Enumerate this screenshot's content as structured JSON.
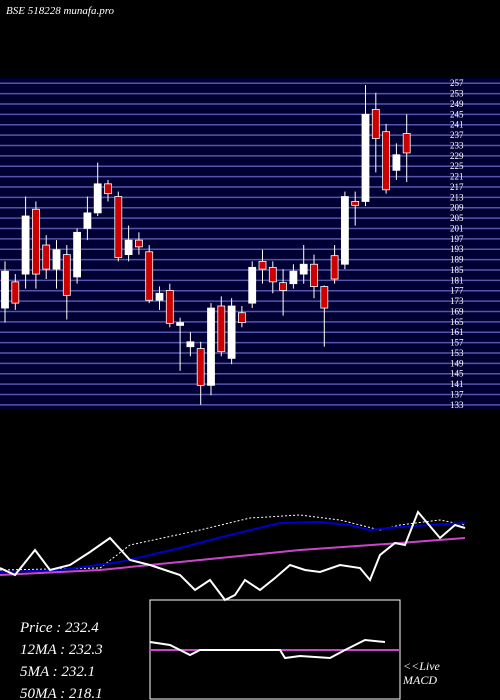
{
  "chart_data": [
    {
      "type": "candlestick",
      "title": "BSE 518228  munafa.pro",
      "ylim": [
        131,
        259
      ],
      "yticks": [
        257,
        253,
        249,
        245,
        241,
        237,
        233,
        229,
        225,
        221,
        217,
        213,
        209,
        205,
        201,
        197,
        193,
        189,
        185,
        181,
        177,
        173,
        169,
        165,
        161,
        157,
        153,
        149,
        145,
        141,
        137,
        133
      ],
      "up_color": "#ffffff",
      "down_color": "#cc0000",
      "grid": true,
      "open": [
        170.3,
        180.4,
        183.4,
        208.4,
        194.6,
        185.3,
        190.9,
        182.3,
        201.0,
        207.0,
        218.2,
        213.3,
        190.9,
        196.5,
        192.0,
        173.3,
        177.1,
        163.6,
        155.4,
        154.7,
        140.5,
        171.1,
        150.9,
        168.5,
        172.2,
        188.3,
        186.0,
        180.1,
        179.7,
        183.4,
        187.2,
        178.6,
        190.5,
        187.2,
        211.4,
        211.4,
        246.9,
        238.3,
        223.4,
        237.6
      ],
      "high": [
        188.3,
        183.4,
        213.3,
        211.4,
        198.4,
        196.5,
        194.6,
        201.0,
        213.3,
        226.4,
        219.7,
        215.2,
        202.1,
        199.5,
        194.6,
        178.6,
        179.7,
        166.6,
        161.0,
        157.3,
        172.2,
        174.8,
        174.1,
        171.1,
        188.3,
        192.8,
        188.3,
        185.3,
        187.2,
        194.6,
        190.9,
        179.0,
        194.6,
        215.2,
        215.2,
        256.3,
        253.3,
        241.3,
        233.8,
        245.0
      ],
      "low": [
        164.7,
        169.6,
        177.8,
        177.8,
        181.5,
        177.8,
        165.9,
        179.7,
        196.5,
        205.8,
        211.4,
        188.3,
        188.3,
        190.9,
        172.2,
        169.6,
        162.9,
        146.1,
        151.7,
        133.0,
        136.7,
        151.7,
        148.7,
        162.9,
        170.3,
        179.7,
        176.0,
        167.4,
        177.8,
        179.7,
        174.1,
        155.4,
        179.7,
        185.3,
        202.1,
        209.6,
        222.6,
        214.4,
        219.7,
        218.9
      ],
      "close": [
        184.5,
        172.2,
        205.8,
        183.4,
        185.3,
        192.8,
        175.2,
        199.5,
        207.0,
        218.2,
        214.4,
        189.8,
        196.5,
        193.9,
        173.3,
        176.0,
        164.4,
        164.7,
        157.3,
        140.5,
        170.3,
        153.5,
        171.1,
        164.7,
        186.0,
        185.3,
        180.4,
        177.1,
        184.5,
        187.2,
        178.6,
        170.3,
        181.5,
        213.3,
        209.9,
        245.0,
        235.7,
        215.9,
        229.4,
        230.1
      ]
    },
    {
      "type": "line",
      "xlim": [
        0,
        500
      ],
      "ylim": [
        0,
        100
      ],
      "series": [
        {
          "color": "#ffffff",
          "dash": true,
          "x": [
            0,
            100,
            130,
            200,
            250,
            300,
            340,
            380,
            400,
            440,
            465
          ],
          "values": [
            30,
            32,
            55,
            70,
            82,
            85,
            80,
            70,
            75,
            80,
            75
          ]
        },
        {
          "color": "#0000cc",
          "x": [
            0,
            60,
            120,
            180,
            230,
            280,
            320,
            350,
            370,
            400,
            430,
            465
          ],
          "values": [
            28,
            30,
            38,
            52,
            65,
            77,
            78,
            75,
            70,
            73,
            75,
            77
          ]
        },
        {
          "color": "#cc44cc",
          "x": [
            0,
            100,
            200,
            300,
            400,
            465
          ],
          "values": [
            25,
            30,
            40,
            50,
            57,
            62
          ]
        },
        {
          "color": "#ffffff",
          "x": [
            0,
            15,
            35,
            50,
            70,
            90,
            110,
            130,
            150,
            165,
            180,
            195,
            210,
            225,
            235,
            245,
            260,
            275,
            290,
            305,
            320,
            340,
            360,
            370,
            380,
            395,
            405,
            418,
            440,
            455,
            465
          ],
          "values": [
            32,
            25,
            50,
            30,
            35,
            48,
            62,
            40,
            35,
            30,
            25,
            10,
            20,
            0,
            5,
            20,
            10,
            22,
            35,
            30,
            28,
            35,
            32,
            20,
            45,
            57,
            55,
            88,
            62,
            75,
            72
          ]
        }
      ]
    },
    {
      "type": "line",
      "xlim": [
        150,
        400
      ],
      "ylim": [
        0,
        100
      ],
      "series": [
        {
          "color": "#cc44cc",
          "x": [
            150,
            400
          ],
          "values": [
            50,
            50
          ]
        },
        {
          "color": "#ffffff",
          "x": [
            150,
            170,
            190,
            200,
            280,
            285,
            300,
            330,
            345,
            365,
            385
          ],
          "values": [
            58,
            55,
            45,
            50,
            50,
            42,
            44,
            42,
            50,
            60,
            58
          ]
        }
      ]
    }
  ],
  "labels": [
    "Price     : 232.4",
    "12MA : 232.3",
    "5MA : 232.1",
    "50MA : 218.1"
  ],
  "macd_label": [
    "<<Live",
    "MACD"
  ]
}
